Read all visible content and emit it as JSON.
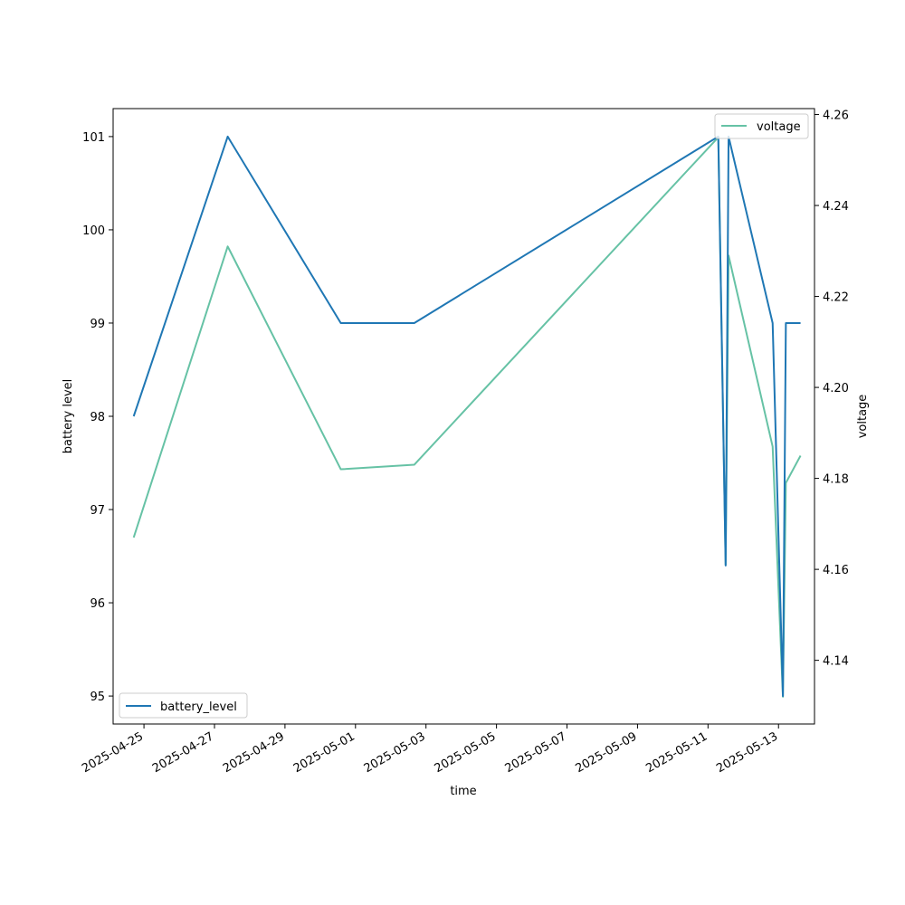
{
  "chart_data": {
    "type": "line",
    "xlabel": "time",
    "ylabel_left": "battery level",
    "ylabel_right": "voltage",
    "x_ticks": [
      "2025-04-25",
      "2025-04-27",
      "2025-04-29",
      "2025-05-01",
      "2025-05-03",
      "2025-05-05",
      "2025-05-07",
      "2025-05-09",
      "2025-05-11",
      "2025-05-13"
    ],
    "xlim": [
      "2025-04-24T03:00",
      "2025-05-14T00:30"
    ],
    "y_left_ticks": [
      95,
      96,
      97,
      98,
      99,
      100,
      101
    ],
    "y_left_range": [
      94.7,
      101.3
    ],
    "y_right_ticks": [
      "4.14",
      "4.16",
      "4.18",
      "4.20",
      "4.22",
      "4.24",
      "4.26"
    ],
    "y_right_range": [
      4.126,
      4.2613
    ],
    "legend_left": "lower-left",
    "legend_right": "upper-right",
    "grid": false,
    "series": [
      {
        "name": "battery_level",
        "axis": "left",
        "color": "#1f77b4",
        "points": [
          {
            "x": "2025-04-24T17:00",
            "y": 98
          },
          {
            "x": "2025-04-27T09:00",
            "y": 101
          },
          {
            "x": "2025-04-30T14:00",
            "y": 99
          },
          {
            "x": "2025-05-02T16:00",
            "y": 99
          },
          {
            "x": "2025-05-11T07:00",
            "y": 101
          },
          {
            "x": "2025-05-11T12:00",
            "y": 96.4
          },
          {
            "x": "2025-05-11T14:00",
            "y": 101
          },
          {
            "x": "2025-05-12T20:00",
            "y": 99
          },
          {
            "x": "2025-05-13T03:00",
            "y": 95
          },
          {
            "x": "2025-05-13T05:00",
            "y": 99
          },
          {
            "x": "2025-05-13T15:00",
            "y": 99
          }
        ]
      },
      {
        "name": "voltage",
        "axis": "right",
        "color": "#66c2a5",
        "points": [
          {
            "x": "2025-04-24T17:00",
            "y": 4.167
          },
          {
            "x": "2025-04-27T09:00",
            "y": 4.231
          },
          {
            "x": "2025-04-30T14:00",
            "y": 4.182
          },
          {
            "x": "2025-05-02T16:00",
            "y": 4.183
          },
          {
            "x": "2025-05-11T07:00",
            "y": 4.255
          },
          {
            "x": "2025-05-11T12:00",
            "y": 4.161
          },
          {
            "x": "2025-05-11T14:00",
            "y": 4.229
          },
          {
            "x": "2025-05-12T20:00",
            "y": 4.187
          },
          {
            "x": "2025-05-13T03:00",
            "y": 4.132
          },
          {
            "x": "2025-05-13T05:00",
            "y": 4.179
          },
          {
            "x": "2025-05-13T15:00",
            "y": 4.185
          }
        ]
      }
    ]
  }
}
